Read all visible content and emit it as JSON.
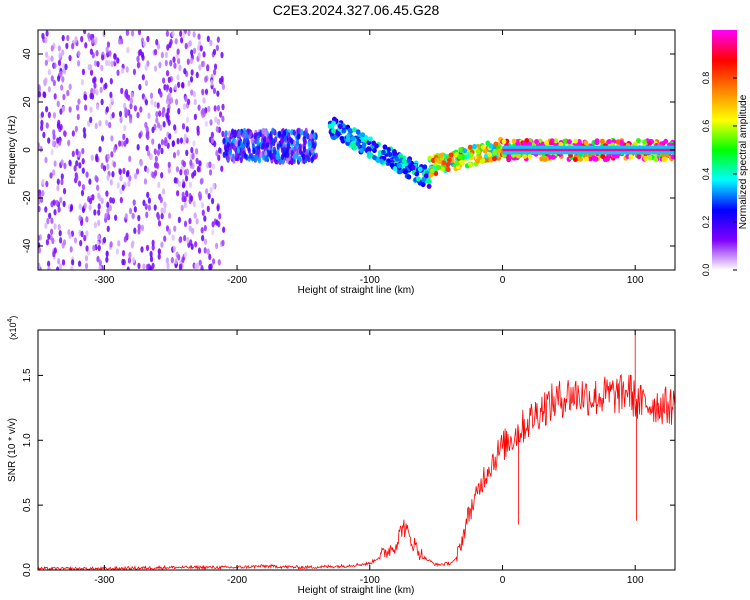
{
  "figure_title": "C2E3.2024.327.06.45.G28",
  "chart_data": [
    {
      "type": "heatmap",
      "xlabel": "Height of straight line (km)",
      "ylabel": "Frequency (Hz)",
      "xlim": [
        -350,
        130
      ],
      "ylim": [
        -50,
        50
      ],
      "x_ticks": [
        -300,
        -200,
        -100,
        0,
        100
      ],
      "y_ticks": [
        -40,
        -20,
        0,
        20,
        40
      ],
      "colorbar": {
        "label": "Normalized spectral amplitude",
        "range": [
          0,
          1
        ],
        "ticks": [
          "0.0",
          "0.2",
          "0.4",
          "0.6",
          "0.8"
        ],
        "colormap": [
          "#ffffff",
          "#8000ff",
          "#0000ff",
          "#00ffff",
          "#00ff00",
          "#ffff00",
          "#ff8000",
          "#ff0000",
          "#ff00ff"
        ]
      },
      "regions": [
        {
          "x_range": [
            -350,
            -210
          ],
          "freq_range": [
            -50,
            50
          ],
          "amplitude": 0.12,
          "description": "broadband noise"
        },
        {
          "x_range": [
            -210,
            -140
          ],
          "freq_range": [
            -5,
            8
          ],
          "amplitude": 0.25
        },
        {
          "x_range": [
            -130,
            -55
          ],
          "freq_center": [
            10,
            -12
          ],
          "amplitude": 0.35
        },
        {
          "x_range": [
            -55,
            0
          ],
          "freq_center": [
            -7,
            1
          ],
          "amplitude": 0.65
        },
        {
          "x_range": [
            0,
            130
          ],
          "freq_center": [
            0,
            0
          ],
          "amplitude": 0.95
        }
      ]
    },
    {
      "type": "line",
      "xlabel": "Height of straight line (km)",
      "ylabel": "SNR (10 * v/v)",
      "y_multiplier": "(x10",
      "y_multiplier_exp": "4",
      "xlim": [
        -350,
        130
      ],
      "ylim": [
        0,
        1.85
      ],
      "x_ticks": [
        -300,
        -200,
        -100,
        0,
        100
      ],
      "y_ticks": [
        "0.0",
        "0.5",
        "1.0",
        "1.5"
      ],
      "color": "#ff0000",
      "series": [
        {
          "x": [
            -350,
            -300,
            -250,
            -200,
            -180,
            -150,
            -120,
            -100,
            -90,
            -80,
            -75,
            -70,
            -60,
            -50,
            -40,
            -35,
            -30,
            -25,
            -20,
            -15,
            -10,
            0,
            10,
            20,
            30,
            40,
            50,
            60,
            70,
            80,
            90,
            95,
            100,
            105,
            110,
            120,
            130
          ],
          "y": [
            0.01,
            0.01,
            0.02,
            0.02,
            0.03,
            0.02,
            0.03,
            0.05,
            0.12,
            0.2,
            0.35,
            0.25,
            0.1,
            0.04,
            0.05,
            0.08,
            0.25,
            0.45,
            0.55,
            0.7,
            0.8,
            0.95,
            1.05,
            1.15,
            1.25,
            1.3,
            1.35,
            1.35,
            1.33,
            1.35,
            1.35,
            1.4,
            1.3,
            1.28,
            1.28,
            1.27,
            1.26
          ]
        }
      ],
      "spikes": [
        {
          "x": 12,
          "y": 0.35
        },
        {
          "x": 100,
          "y": 1.85
        },
        {
          "x": 101,
          "y": 0.38
        }
      ]
    }
  ]
}
